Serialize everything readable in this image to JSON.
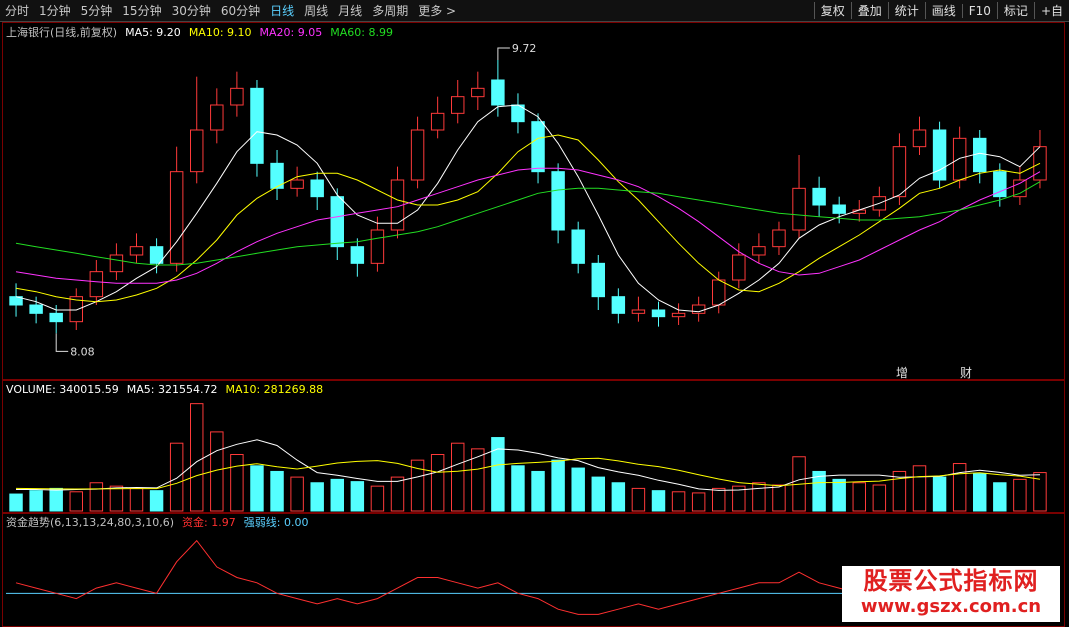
{
  "toolbar": {
    "periods": [
      "分时",
      "1分钟",
      "5分钟",
      "15分钟",
      "30分钟",
      "60分钟",
      "日线",
      "周线",
      "月线",
      "多周期",
      "更多 >"
    ],
    "tools": [
      "复权",
      "叠加",
      "统计",
      "画线",
      "F10",
      "标记",
      "+自"
    ]
  },
  "main_panel": {
    "title": "上海银行(日线,前复权)",
    "legend": [
      {
        "text": "MA5: 9.20",
        "color": "#ffffff"
      },
      {
        "text": "MA10: 9.10",
        "color": "#ffff00"
      },
      {
        "text": "MA20: 9.05",
        "color": "#ff33ff"
      },
      {
        "text": "MA60: 8.99",
        "color": "#22dd22"
      }
    ],
    "ylim": [
      7.98,
      9.84
    ],
    "open": [
      8.3,
      8.25,
      8.2,
      8.15,
      8.3,
      8.45,
      8.55,
      8.6,
      8.5,
      9.05,
      9.3,
      9.45,
      9.55,
      9.1,
      8.95,
      9.0,
      8.9,
      8.6,
      8.5,
      8.7,
      9.0,
      9.3,
      9.4,
      9.5,
      9.6,
      9.45,
      9.35,
      9.05,
      8.7,
      8.5,
      8.3,
      8.2,
      8.22,
      8.18,
      8.2,
      8.25,
      8.4,
      8.55,
      8.6,
      8.7,
      8.95,
      8.85,
      8.8,
      8.82,
      8.9,
      9.2,
      9.3,
      9.0,
      9.25,
      9.05,
      8.9,
      9.0
    ],
    "high": [
      8.38,
      8.3,
      8.25,
      8.35,
      8.52,
      8.62,
      8.68,
      8.65,
      9.2,
      9.62,
      9.55,
      9.65,
      9.6,
      9.18,
      9.08,
      9.05,
      8.95,
      8.65,
      8.78,
      9.08,
      9.38,
      9.5,
      9.6,
      9.65,
      9.72,
      9.52,
      9.4,
      9.1,
      8.75,
      8.55,
      8.35,
      8.3,
      8.27,
      8.26,
      8.3,
      8.45,
      8.62,
      8.68,
      8.75,
      9.15,
      9.02,
      8.9,
      8.88,
      8.96,
      9.28,
      9.38,
      9.35,
      9.32,
      9.3,
      9.1,
      9.08,
      9.3
    ],
    "low": [
      8.18,
      8.14,
      8.08,
      8.1,
      8.25,
      8.4,
      8.5,
      8.44,
      8.45,
      8.98,
      9.22,
      9.38,
      9.02,
      8.88,
      8.9,
      8.82,
      8.52,
      8.42,
      8.45,
      8.65,
      8.95,
      9.25,
      9.34,
      9.42,
      9.38,
      9.28,
      8.98,
      8.62,
      8.44,
      8.22,
      8.14,
      8.15,
      8.12,
      8.13,
      8.15,
      8.2,
      8.35,
      8.5,
      8.55,
      8.65,
      8.78,
      8.74,
      8.75,
      8.78,
      8.85,
      9.15,
      8.95,
      8.95,
      8.98,
      8.84,
      8.85,
      8.95
    ],
    "close": [
      8.25,
      8.2,
      8.15,
      8.3,
      8.45,
      8.55,
      8.6,
      8.5,
      9.05,
      9.3,
      9.45,
      9.55,
      9.1,
      8.95,
      9.0,
      8.9,
      8.6,
      8.5,
      8.7,
      9.0,
      9.3,
      9.4,
      9.5,
      9.55,
      9.45,
      9.35,
      9.05,
      8.7,
      8.5,
      8.3,
      8.2,
      8.22,
      8.18,
      8.2,
      8.25,
      8.4,
      8.55,
      8.6,
      8.7,
      8.95,
      8.85,
      8.8,
      8.82,
      8.9,
      9.2,
      9.3,
      9.0,
      9.25,
      9.05,
      8.9,
      9.0,
      9.2
    ],
    "ma": [
      [
        8.3,
        8.27,
        8.22,
        8.22,
        8.27,
        8.33,
        8.41,
        8.48,
        8.63,
        8.8,
        8.98,
        9.17,
        9.29,
        9.27,
        9.21,
        9.1,
        8.91,
        8.79,
        8.74,
        8.74,
        8.82,
        8.98,
        9.18,
        9.35,
        9.44,
        9.45,
        9.38,
        9.22,
        9.02,
        8.79,
        8.55,
        8.38,
        8.28,
        8.22,
        8.21,
        8.25,
        8.32,
        8.4,
        8.5,
        8.65,
        8.73,
        8.78,
        8.82,
        8.86,
        8.91,
        9.01,
        9.06,
        9.13,
        9.16,
        9.14,
        9.08,
        9.2
      ],
      [
        8.35,
        8.33,
        8.3,
        8.28,
        8.27,
        8.28,
        8.31,
        8.35,
        8.42,
        8.52,
        8.64,
        8.79,
        8.89,
        8.96,
        9.02,
        9.04,
        9.04,
        9.0,
        8.94,
        8.88,
        8.85,
        8.85,
        8.88,
        8.93,
        9.04,
        9.17,
        9.25,
        9.27,
        9.24,
        9.12,
        8.99,
        8.88,
        8.75,
        8.62,
        8.5,
        8.4,
        8.34,
        8.33,
        8.38,
        8.45,
        8.53,
        8.6,
        8.67,
        8.75,
        8.83,
        8.92,
        8.95,
        9.0,
        9.04,
        9.06,
        9.04,
        9.1
      ],
      [
        8.45,
        8.43,
        8.41,
        8.4,
        8.39,
        8.38,
        8.38,
        8.38,
        8.4,
        8.44,
        8.5,
        8.57,
        8.63,
        8.68,
        8.72,
        8.76,
        8.78,
        8.8,
        8.82,
        8.84,
        8.88,
        8.92,
        8.96,
        9.0,
        9.03,
        9.06,
        9.07,
        9.07,
        9.06,
        9.03,
        9.0,
        8.96,
        8.9,
        8.83,
        8.75,
        8.66,
        8.57,
        8.5,
        8.45,
        8.43,
        8.44,
        8.48,
        8.52,
        8.58,
        8.64,
        8.7,
        8.75,
        8.82,
        8.88,
        8.93,
        8.98,
        9.05
      ],
      [
        8.62,
        8.6,
        8.58,
        8.56,
        8.54,
        8.52,
        8.5,
        8.49,
        8.49,
        8.5,
        8.52,
        8.54,
        8.56,
        8.58,
        8.6,
        8.61,
        8.62,
        8.63,
        8.65,
        8.67,
        8.69,
        8.72,
        8.76,
        8.8,
        8.84,
        8.88,
        8.92,
        8.94,
        8.95,
        8.95,
        8.94,
        8.93,
        8.92,
        8.9,
        8.88,
        8.86,
        8.84,
        8.82,
        8.8,
        8.79,
        8.78,
        8.77,
        8.76,
        8.76,
        8.77,
        8.78,
        8.8,
        8.82,
        8.85,
        8.88,
        8.92,
        8.99
      ]
    ],
    "events": [
      "增",
      "财"
    ]
  },
  "volume": {
    "legend": [
      {
        "text": "VOLUME: 340015.59",
        "color": "#ffffff"
      },
      {
        "text": "MA5: 321554.72",
        "color": "#ffffff"
      },
      {
        "text": "MA10: 281269.88",
        "color": "#ffff00"
      }
    ],
    "ylim": [
      0,
      1000000
    ],
    "values": [
      150000,
      180000,
      200000,
      170000,
      250000,
      220000,
      200000,
      180000,
      600000,
      950000,
      700000,
      500000,
      400000,
      350000,
      300000,
      250000,
      280000,
      260000,
      220000,
      300000,
      450000,
      500000,
      600000,
      550000,
      650000,
      400000,
      350000,
      450000,
      380000,
      300000,
      250000,
      200000,
      180000,
      170000,
      160000,
      200000,
      220000,
      250000,
      230000,
      480000,
      350000,
      280000,
      250000,
      230000,
      350000,
      400000,
      300000,
      420000,
      330000,
      250000,
      280000,
      340015.59
    ],
    "ma": [
      [
        190000,
        190000,
        185000,
        190000,
        194000,
        204000,
        208000,
        204000,
        290000,
        436000,
        534000,
        590000,
        630000,
        580000,
        450000,
        340000,
        316000,
        288000,
        262000,
        262000,
        302000,
        346000,
        414000,
        480000,
        550000,
        540000,
        510000,
        470000,
        446000,
        384000,
        346000,
        316000,
        272000,
        236000,
        196000,
        182000,
        186000,
        200000,
        212000,
        276000,
        306000,
        318000,
        318000,
        318000,
        298000,
        302000,
        306000,
        340000,
        360000,
        342000,
        316000,
        321554.72
      ],
      [
        200000,
        198000,
        196000,
        195000,
        196000,
        197000,
        198000,
        198000,
        245000,
        313000,
        362000,
        397000,
        419000,
        392000,
        372000,
        397000,
        425000,
        439000,
        446000,
        421000,
        376000,
        343000,
        351000,
        371000,
        408000,
        421000,
        430000,
        442000,
        463000,
        467000,
        443000,
        413000,
        393000,
        360000,
        321000,
        283000,
        251000,
        236000,
        224000,
        236000,
        251000,
        252000,
        259000,
        265000,
        287000,
        304000,
        311000,
        329000,
        339000,
        320000,
        309000,
        281269.88
      ]
    ]
  },
  "indicator": {
    "title": "资金趋势(6,13,13,24,80,3,10,6)",
    "legend": [
      {
        "text": "资金: 1.97",
        "color": "#ff3030"
      },
      {
        "text": "强弱线: 0.00",
        "color": "#5ad0ff"
      }
    ],
    "ylim": [
      -6,
      12
    ],
    "fund": [
      2,
      1,
      0,
      -1,
      1,
      2,
      1,
      0,
      6,
      10,
      5,
      3,
      2,
      0,
      -1,
      -2,
      -1,
      -2,
      -1,
      1,
      3,
      3,
      2,
      1,
      2,
      0,
      -1,
      -3,
      -4,
      -4,
      -3,
      -2,
      -3,
      -2,
      -1,
      0,
      1,
      2,
      2,
      4,
      2,
      1,
      0,
      1,
      3,
      3,
      1,
      2,
      1,
      0,
      1,
      1.97
    ],
    "strength": 0
  },
  "logo": {
    "name": "股票公式指标网",
    "url": "www.gszx.com.cn"
  }
}
